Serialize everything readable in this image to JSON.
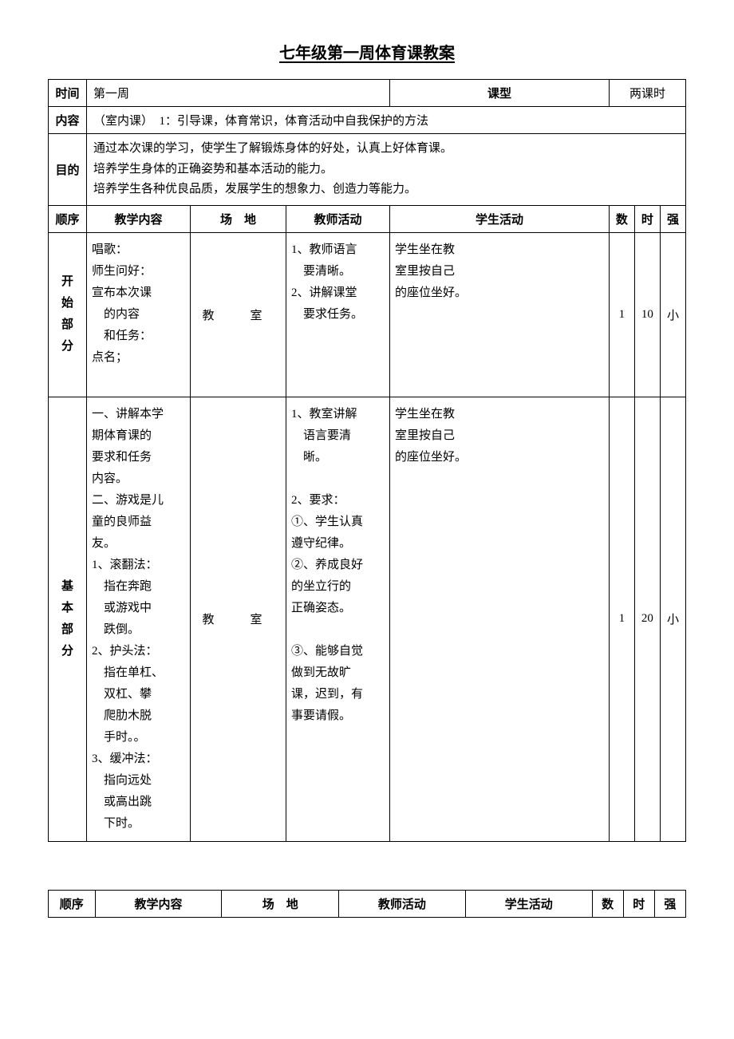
{
  "title": "七年级第一周体育课教案",
  "table1": {
    "row1": {
      "label_time": "时间",
      "value_time": "第一周",
      "label_type": "课型",
      "value_type": "两课时"
    },
    "row2": {
      "label": "内容",
      "value": "（室内课）　1：引导课，体育常识，体育活动中自我保护的方法"
    },
    "row3": {
      "label": "目的",
      "line1": "通过本次课的学习，使学生了解锻炼身体的好处，认真上好体育课。",
      "line2": "培养学生身体的正确姿势和基本活动的能力。",
      "line3": "培养学生各种优良品质，发展学生的想象力、创造力等能力。"
    },
    "headers": {
      "seq": "顺序",
      "content": "教学内容",
      "venue": "场　地",
      "teacher": "教师活动",
      "student": "学生活动",
      "count": "数",
      "time": "时",
      "intensity": "强"
    },
    "start_section": {
      "label_l1": "开",
      "label_l2": "始",
      "label_l3": "部",
      "label_l4": "分",
      "content_l1": "唱歌：",
      "content_l2": "师生问好：",
      "content_l3": "宣布本次课",
      "content_l4": "　的内容",
      "content_l5": "　和任务：",
      "content_l6": "点名；",
      "venue": "教　室",
      "teacher_l1": "1、教师语言",
      "teacher_l2": "　要清晰。",
      "teacher_l3": "2、讲解课堂",
      "teacher_l4": "　要求任务。",
      "student_l1": "学生坐在教",
      "student_l2": "室里按自己",
      "student_l3": "的座位坐好。",
      "count": "1",
      "time": "10",
      "intensity": "小"
    },
    "basic_section": {
      "label_l1": "基",
      "label_l2": "本",
      "label_l3": "部",
      "label_l4": "分",
      "content_l1": "一、讲解本学",
      "content_l2": "期体育课的",
      "content_l3": "要求和任务",
      "content_l4": "内容。",
      "content_l5": "二、游戏是儿",
      "content_l6": "童的良师益",
      "content_l7": "友。",
      "content_l8": "1、滚翻法：",
      "content_l9": "　指在奔跑",
      "content_l10": "　或游戏中",
      "content_l11": "　跌倒。",
      "content_l12": "2、护头法：",
      "content_l13": "　指在单杠、",
      "content_l14": "　双杠、攀",
      "content_l15": "　爬肋木脱",
      "content_l16": "　手时。。",
      "content_l17": "3、缓冲法：",
      "content_l18": "　指向远处",
      "content_l19": "　或高出跳",
      "content_l20": "　下时。",
      "venue": "教　室",
      "teacher_l1": "1、教室讲解",
      "teacher_l2": "　语言要清",
      "teacher_l3": "　晰。",
      "teacher_l4": "",
      "teacher_l5": "2、要求：",
      "teacher_l6": "①、学生认真",
      "teacher_l7": "遵守纪律。",
      "teacher_l8": "②、养成良好",
      "teacher_l9": "的坐立行的",
      "teacher_l10": "正确姿态。",
      "teacher_l11": "",
      "teacher_l12": "③、能够自觉",
      "teacher_l13": "做到无故旷",
      "teacher_l14": "课，迟到，有",
      "teacher_l15": "事要请假。",
      "student_l1": "学生坐在教",
      "student_l2": "室里按自己",
      "student_l3": "的座位坐好。",
      "count": "1",
      "time": "20",
      "intensity": "小"
    }
  },
  "table2": {
    "headers": {
      "seq": "顺序",
      "content": "教学内容",
      "venue": "场　地",
      "teacher": "教师活动",
      "student": "学生活动",
      "count": "数",
      "time": "时",
      "intensity": "强"
    }
  }
}
